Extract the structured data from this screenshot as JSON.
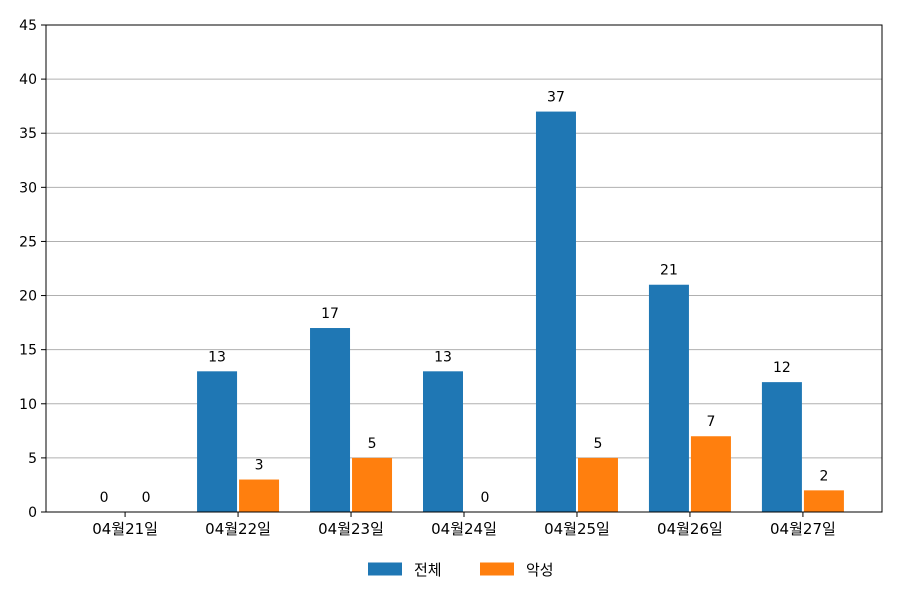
{
  "chart_data": {
    "type": "bar",
    "categories": [
      "04월21일",
      "04월22일",
      "04월23일",
      "04월24일",
      "04월25일",
      "04월26일",
      "04월27일"
    ],
    "series": [
      {
        "name": "전체",
        "values": [
          0,
          13,
          17,
          13,
          37,
          21,
          12
        ],
        "color": "#1f77b4"
      },
      {
        "name": "악성",
        "values": [
          0,
          3,
          5,
          0,
          5,
          7,
          2
        ],
        "color": "#ff7f0e"
      }
    ],
    "ylim": [
      0,
      45
    ],
    "yticks": [
      0,
      5,
      10,
      15,
      20,
      25,
      30,
      35,
      40,
      45
    ],
    "grid": "horizontal",
    "legend": "bottom-center",
    "data_labels": true
  }
}
